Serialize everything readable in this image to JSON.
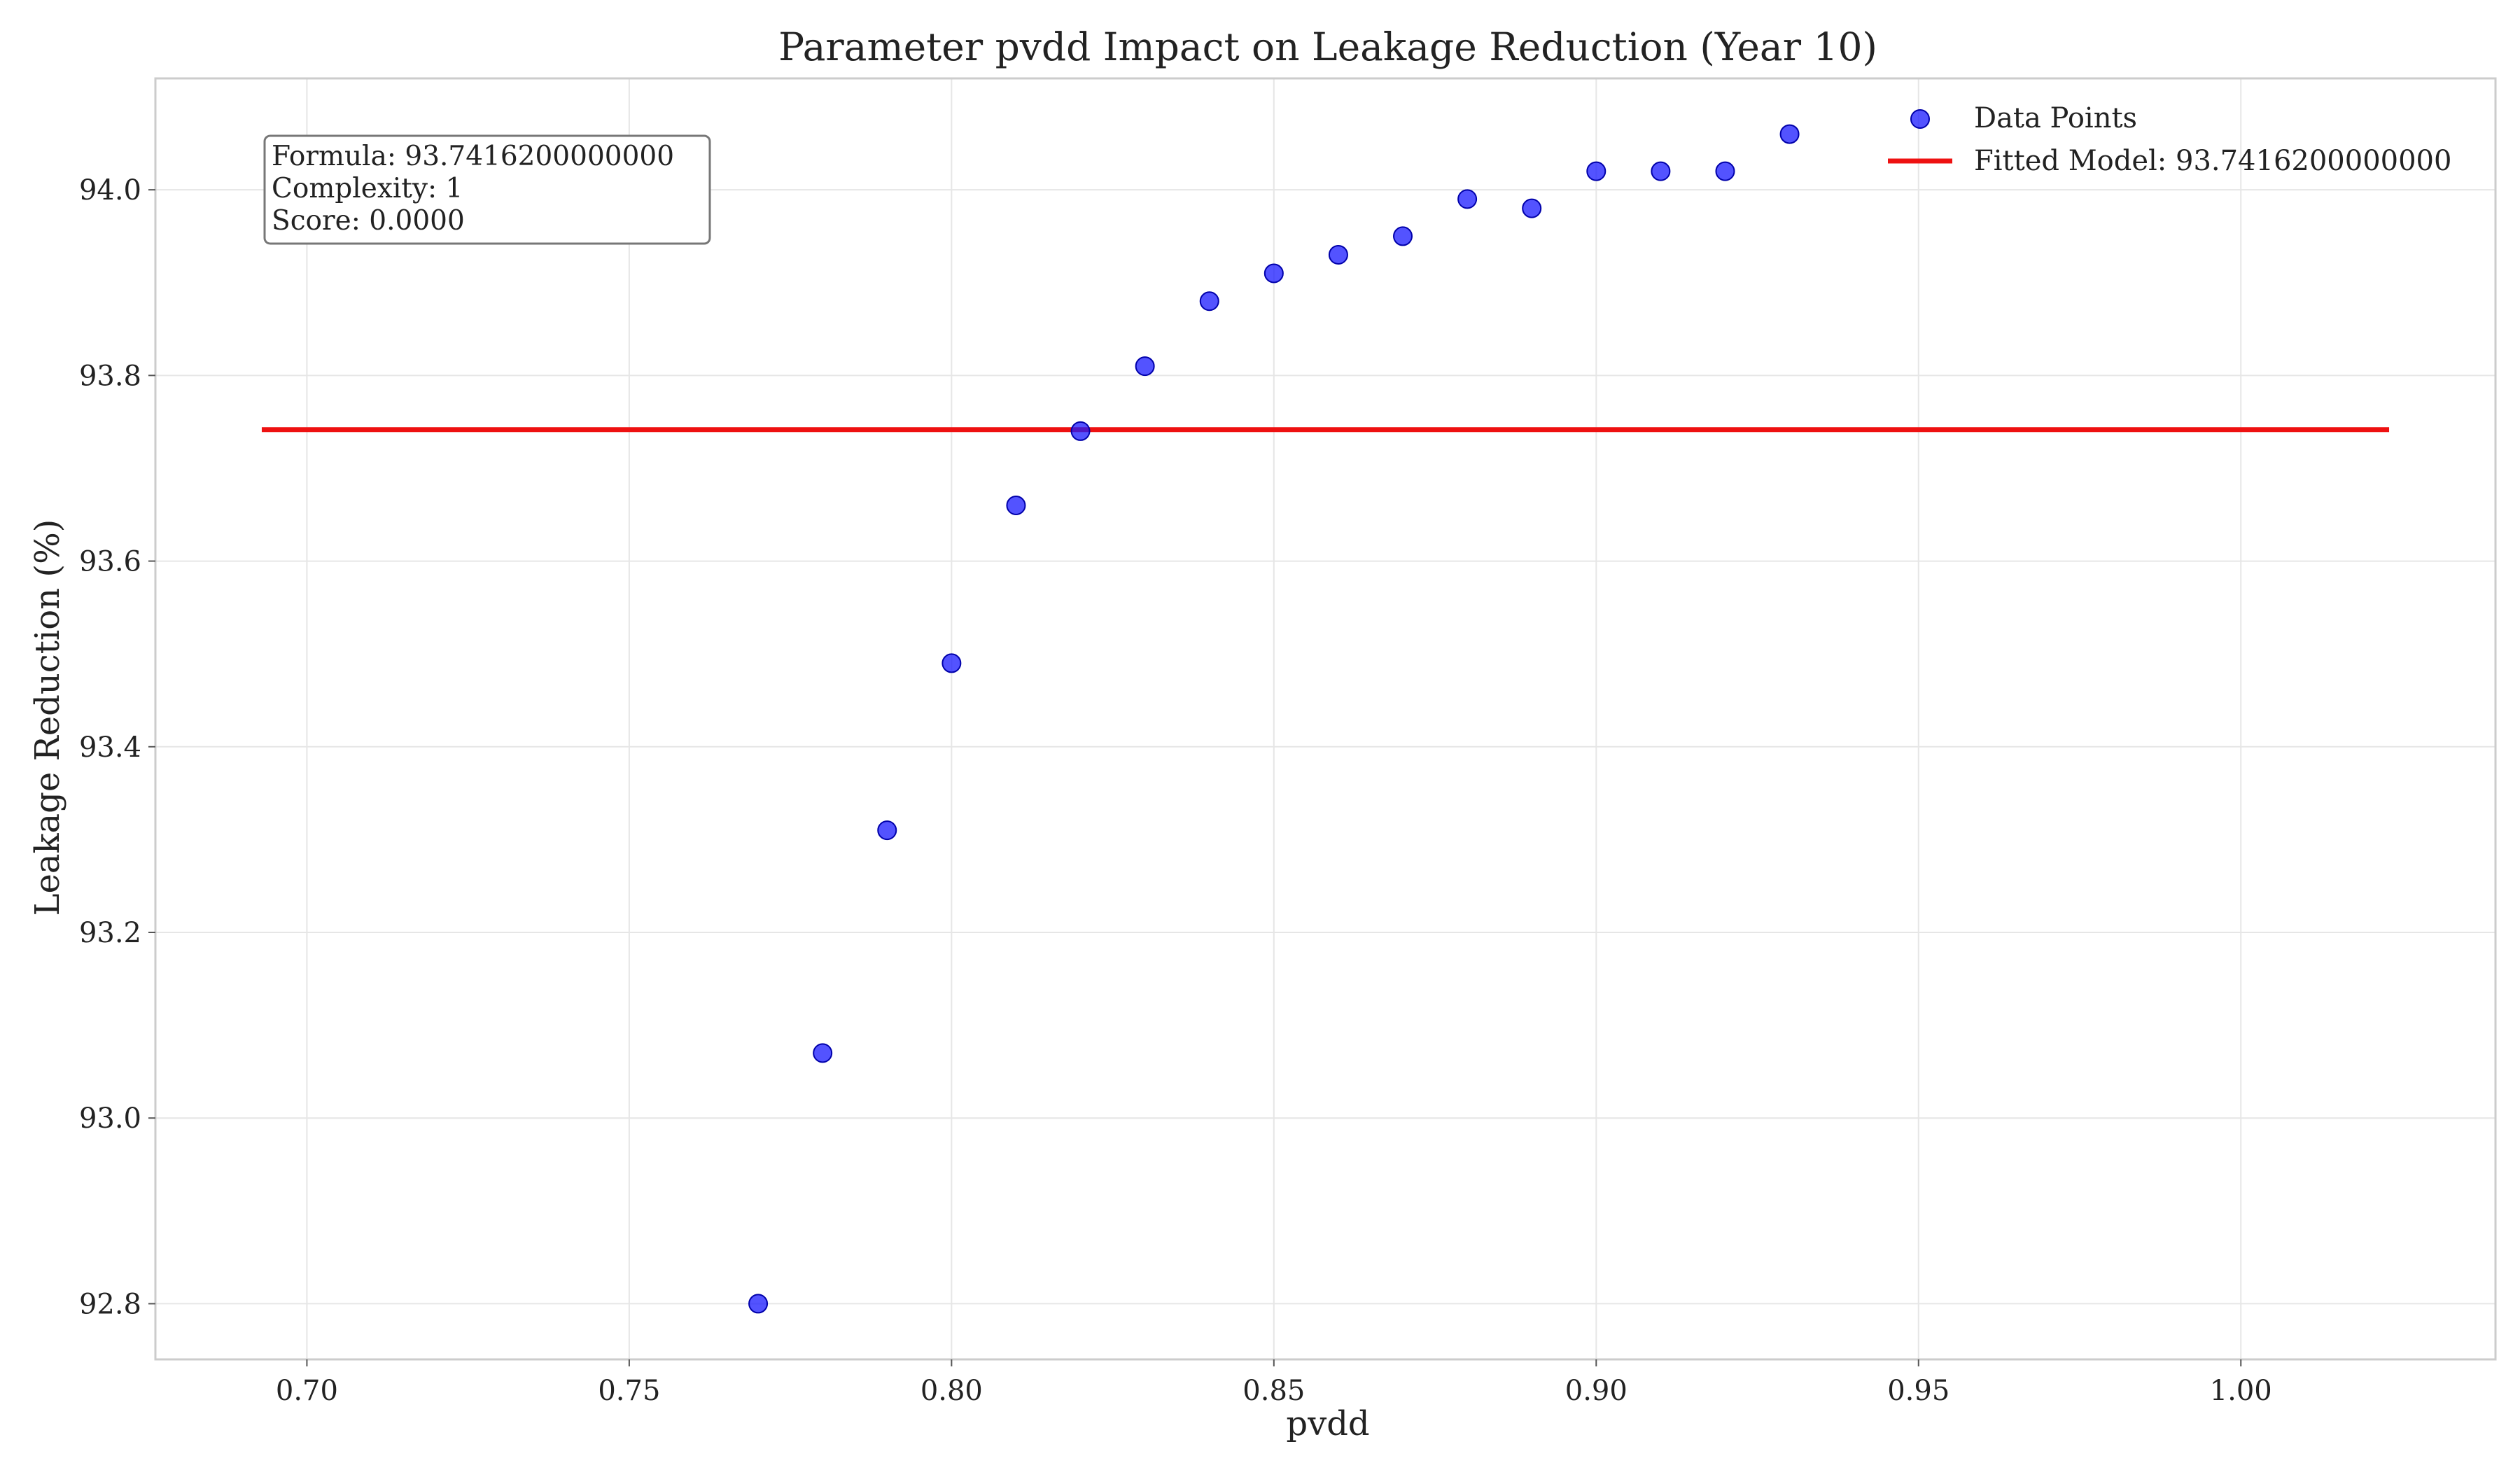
{
  "chart_data": {
    "type": "scatter",
    "title": "Parameter pvdd Impact on Leakage Reduction (Year 10)",
    "xlabel": "pvdd",
    "ylabel": "Leakage Reduction (%)",
    "xlim": [
      0.6765,
      1.0395
    ],
    "ylim": [
      92.74,
      94.12
    ],
    "xticks": [
      0.7,
      0.75,
      0.8,
      0.85,
      0.9,
      0.95,
      1.0
    ],
    "xtick_labels": [
      "0.70",
      "0.75",
      "0.80",
      "0.85",
      "0.90",
      "0.95",
      "1.00"
    ],
    "yticks": [
      92.8,
      93.0,
      93.2,
      93.4,
      93.6,
      93.8,
      94.0
    ],
    "ytick_labels": [
      "92.8",
      "93.0",
      "93.2",
      "93.4",
      "93.6",
      "93.8",
      "94.0"
    ],
    "grid": true,
    "legend_position": "top-right",
    "series": [
      {
        "name": "Data Points",
        "kind": "scatter",
        "color": "#1a1aff",
        "x": [
          0.77,
          0.78,
          0.79,
          0.8,
          0.81,
          0.82,
          0.83,
          0.84,
          0.85,
          0.86,
          0.87,
          0.88,
          0.89,
          0.9,
          0.91,
          0.92,
          0.93
        ],
        "y": [
          92.8,
          93.07,
          93.31,
          93.49,
          93.66,
          93.74,
          93.81,
          93.88,
          93.91,
          93.93,
          93.95,
          93.99,
          93.98,
          94.02,
          94.02,
          94.02,
          94.06
        ]
      },
      {
        "name": "Fitted Model: 93.7416200000000",
        "kind": "line",
        "color": "#ee1111",
        "x": [
          0.693,
          1.023
        ],
        "y": [
          93.74162,
          93.74162
        ]
      }
    ],
    "annotation": {
      "lines": [
        "Formula: 93.7416200000000",
        "Complexity: 1",
        "Score: 0.0000"
      ]
    }
  },
  "colors": {
    "scatter": "#1a1aff",
    "fit_line": "#ee1111",
    "grid": "#e6e6e6",
    "frame": "#cccccc"
  }
}
